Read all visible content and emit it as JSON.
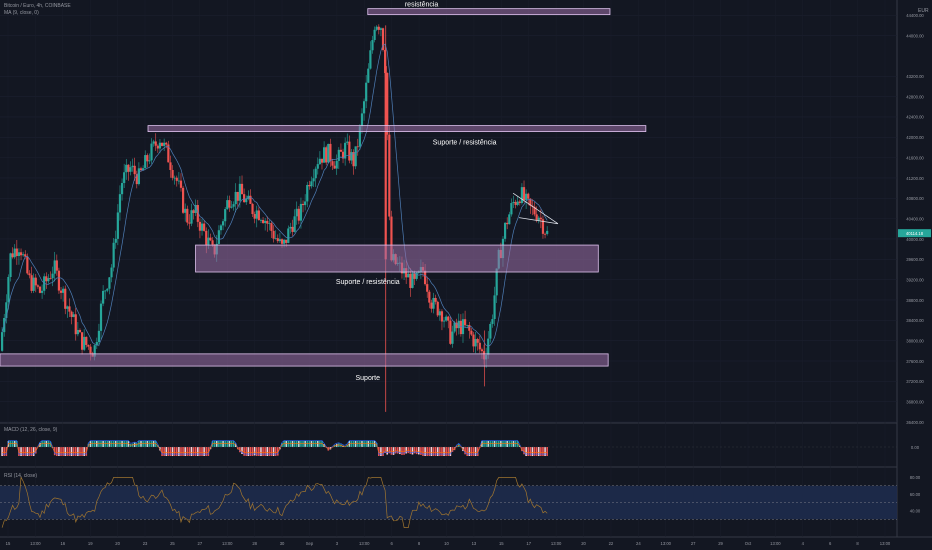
{
  "header": {
    "symbol": "Bitcoin / Euro, 4h, COINBASE",
    "ma_label": "MA (9, close, 0)",
    "currency": "EUR"
  },
  "macd_pane": {
    "label": "MACD (12, 26, close, 9)"
  },
  "rsi_pane": {
    "label": "RSI (14, close)"
  },
  "colors": {
    "background": "#131722",
    "up": "#26a69a",
    "down": "#ef5350",
    "zone_fill": "#9c6fa8",
    "zone_stroke": "#e0c3ef",
    "ma_line": "#4f7fb8",
    "rsi_line": "#a0752f",
    "rsi_band": "#1e2b4d",
    "price_tag": "#26a69a"
  },
  "chart_data": {
    "type": "candlestick",
    "price_axis": {
      "ticks": [
        "44400.00",
        "44000.00",
        "43200.00",
        "42800.00",
        "42400.00",
        "42000.00",
        "41600.00",
        "41200.00",
        "40800.00",
        "40400.00",
        "40000.00",
        "39600.00",
        "39200.00",
        "38800.00",
        "38400.00",
        "38000.00",
        "37600.00",
        "37200.00",
        "36800.00",
        "36400.00"
      ],
      "current_price": "40114.18",
      "current_value": 40114
    },
    "time_axis": {
      "ticks": [
        "15",
        "13:00",
        "16",
        "19",
        "20",
        "23",
        "25",
        "27",
        "13:00",
        "28",
        "30",
        "Sep",
        "3",
        "13:00",
        "6",
        "8",
        "10",
        "13",
        "15",
        "17",
        "13:00",
        "20",
        "22",
        "24",
        "13:00",
        "27",
        "29",
        "Oct",
        "13:00",
        "4",
        "6",
        "8",
        "13:00"
      ]
    },
    "zones": [
      {
        "label": "resistência",
        "low": 44430,
        "high": 44530,
        "from": 0.41,
        "to": 0.68
      },
      {
        "label": "Suporte / resistência",
        "low": 42130,
        "high": 42230,
        "from": 0.165,
        "to": 0.72
      },
      {
        "label": "Suporte / resistência",
        "low": 39350,
        "high": 39880,
        "from": 0.218,
        "to": 0.667
      },
      {
        "label": "Suporte",
        "low": 37500,
        "high": 37740,
        "from": 0.0,
        "to": 0.678
      }
    ],
    "triangle": {
      "start": 40900,
      "apex": 40300
    },
    "price_path": [
      {
        "t": 0.0,
        "p": 37800
      },
      {
        "t": 0.012,
        "p": 39700
      },
      {
        "t": 0.022,
        "p": 39900
      },
      {
        "t": 0.032,
        "p": 39200
      },
      {
        "t": 0.045,
        "p": 38950
      },
      {
        "t": 0.06,
        "p": 39450
      },
      {
        "t": 0.075,
        "p": 38700
      },
      {
        "t": 0.09,
        "p": 38000
      },
      {
        "t": 0.105,
        "p": 37800
      },
      {
        "t": 0.115,
        "p": 38900
      },
      {
        "t": 0.125,
        "p": 39500
      },
      {
        "t": 0.135,
        "p": 41100
      },
      {
        "t": 0.145,
        "p": 41400
      },
      {
        "t": 0.155,
        "p": 41200
      },
      {
        "t": 0.165,
        "p": 41600
      },
      {
        "t": 0.178,
        "p": 42000
      },
      {
        "t": 0.188,
        "p": 41600
      },
      {
        "t": 0.198,
        "p": 41100
      },
      {
        "t": 0.208,
        "p": 40400
      },
      {
        "t": 0.218,
        "p": 40500
      },
      {
        "t": 0.228,
        "p": 40100
      },
      {
        "t": 0.238,
        "p": 39700
      },
      {
        "t": 0.245,
        "p": 40200
      },
      {
        "t": 0.255,
        "p": 40800
      },
      {
        "t": 0.268,
        "p": 40900
      },
      {
        "t": 0.28,
        "p": 40600
      },
      {
        "t": 0.292,
        "p": 40500
      },
      {
        "t": 0.305,
        "p": 40100
      },
      {
        "t": 0.315,
        "p": 39800
      },
      {
        "t": 0.325,
        "p": 40300
      },
      {
        "t": 0.335,
        "p": 40500
      },
      {
        "t": 0.345,
        "p": 41200
      },
      {
        "t": 0.355,
        "p": 41600
      },
      {
        "t": 0.365,
        "p": 41700
      },
      {
        "t": 0.375,
        "p": 41500
      },
      {
        "t": 0.385,
        "p": 41800
      },
      {
        "t": 0.395,
        "p": 41500
      },
      {
        "t": 0.402,
        "p": 42200
      },
      {
        "t": 0.41,
        "p": 43200
      },
      {
        "t": 0.418,
        "p": 44300
      },
      {
        "t": 0.425,
        "p": 44200
      },
      {
        "t": 0.43,
        "p": 43300
      },
      {
        "t": 0.435,
        "p": 39600
      },
      {
        "t": 0.442,
        "p": 39500
      },
      {
        "t": 0.452,
        "p": 39300
      },
      {
        "t": 0.462,
        "p": 39100
      },
      {
        "t": 0.472,
        "p": 39400
      },
      {
        "t": 0.482,
        "p": 38700
      },
      {
        "t": 0.492,
        "p": 38600
      },
      {
        "t": 0.502,
        "p": 38100
      },
      {
        "t": 0.512,
        "p": 38300
      },
      {
        "t": 0.522,
        "p": 38200
      },
      {
        "t": 0.532,
        "p": 37900
      },
      {
        "t": 0.54,
        "p": 37700
      },
      {
        "t": 0.548,
        "p": 38400
      },
      {
        "t": 0.556,
        "p": 39600
      },
      {
        "t": 0.564,
        "p": 40300
      },
      {
        "t": 0.572,
        "p": 40700
      },
      {
        "t": 0.58,
        "p": 40900
      },
      {
        "t": 0.59,
        "p": 40600
      },
      {
        "t": 0.6,
        "p": 40500
      },
      {
        "t": 0.61,
        "p": 40100
      }
    ],
    "macd_histogram": {
      "min": -1200,
      "max": 600
    },
    "rsi": {
      "levels": [
        70,
        50,
        30
      ],
      "axis_ticks": [
        "80.00",
        "60.00",
        "40.00"
      ]
    }
  }
}
